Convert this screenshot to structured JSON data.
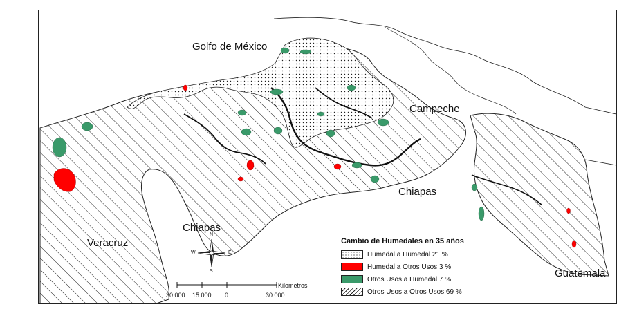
{
  "map": {
    "labels": {
      "gulf": "Golfo de México",
      "campeche": "Campeche",
      "chiapas_east": "Chiapas",
      "chiapas_west": "Chiapas",
      "veracruz": "Veracruz",
      "guatemala": "Guatemala"
    },
    "legend": {
      "title": "Cambio de Humedales en 35 años",
      "items": [
        {
          "label": "Humedal a Humedal  21 %",
          "pattern": "dots",
          "color": "#ffffff"
        },
        {
          "label": "Humedal a Otros Usos 3 %",
          "pattern": "solid",
          "color": "#ff0000"
        },
        {
          "label": "Otros Usos a Humedal 7 %",
          "pattern": "solid",
          "color": "#3a9a6a"
        },
        {
          "label": "Otros Usos a Otros Usos 69 %",
          "pattern": "hatch",
          "color": "#ffffff"
        }
      ]
    },
    "scale": {
      "unit": "Kilometros",
      "ticks": [
        "30.000",
        "15.000",
        "0",
        "30.000"
      ]
    },
    "compass": {
      "n": "N",
      "s": "S",
      "e": "E",
      "w": "W",
      "icon": "north-arrow-compass"
    }
  }
}
